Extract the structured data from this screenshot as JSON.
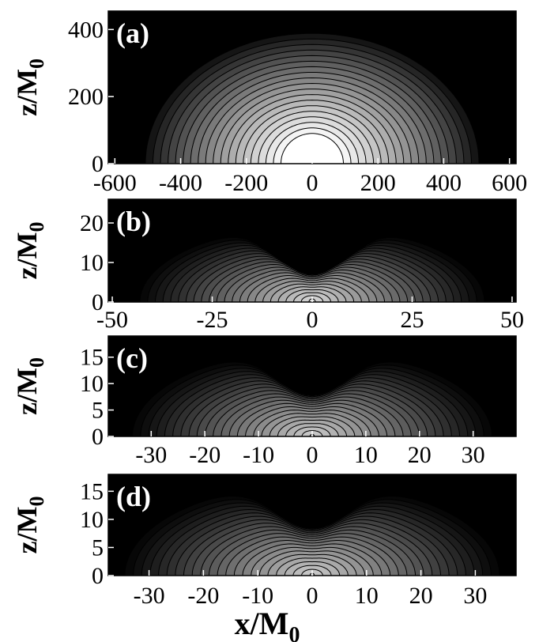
{
  "chart_data": [
    {
      "type": "contour",
      "panel_label": "(a)",
      "ylabel": "z/M",
      "ylabel_sub": "0",
      "xlim": [
        -620,
        620
      ],
      "ylim": [
        0,
        455
      ],
      "xticks": [
        -600,
        -400,
        -200,
        0,
        200,
        400,
        600
      ],
      "xtick_labels": [
        "-600",
        "-400",
        "-200",
        "0",
        "200",
        "400",
        "600"
      ],
      "yticks": [
        0,
        200,
        400
      ],
      "ytick_labels": [
        "0",
        "200",
        "400"
      ],
      "contour_shape": "semicircle",
      "outer_radius": 530,
      "outer_top": 405,
      "inner_radius": 95,
      "inner_top": 90,
      "levels": 20,
      "background": "#000000",
      "brightest": "#ffffff"
    },
    {
      "type": "contour",
      "panel_label": "(b)",
      "ylabel": "z/M",
      "ylabel_sub": "0",
      "xlim": [
        -51,
        51
      ],
      "ylim": [
        0,
        26
      ],
      "xticks": [
        -50,
        -25,
        0,
        25,
        50
      ],
      "xtick_labels": [
        "-50",
        "-25",
        "0",
        "25",
        "50"
      ],
      "yticks": [
        0,
        10,
        20
      ],
      "ytick_labels": [
        "0",
        "10",
        "20"
      ],
      "contour_shape": "lobed",
      "outer_radius": 45,
      "outer_top": 20,
      "dip": 0.78,
      "inner_radius": 0.8,
      "inner_top": 0.8,
      "levels": 24,
      "background": "#000000",
      "brightest": "#d8d8d8"
    },
    {
      "type": "contour",
      "panel_label": "(c)",
      "ylabel": "z/M",
      "ylabel_sub": "0",
      "xlim": [
        -38,
        38
      ],
      "ylim": [
        0,
        19
      ],
      "xticks": [
        -30,
        -20,
        -10,
        0,
        10,
        20,
        30
      ],
      "xtick_labels": [
        "-30",
        "-20",
        "-10",
        "0",
        "10",
        "20",
        "30"
      ],
      "yticks": [
        0,
        5,
        10,
        15
      ],
      "ytick_labels": [
        "0",
        "5",
        "10",
        "15"
      ],
      "contour_shape": "lobed",
      "outer_radius": 35,
      "outer_top": 17,
      "dip": 0.55,
      "inner_radius": 0.4,
      "inner_top": 0.4,
      "levels": 24,
      "background": "#000000",
      "brightest": "#cfcfcf"
    },
    {
      "type": "contour",
      "panel_label": "(d)",
      "ylabel": "z/M",
      "ylabel_sub": "0",
      "xlim": [
        -37.5,
        37.5
      ],
      "ylim": [
        0,
        18
      ],
      "xticks": [
        -30,
        -20,
        -10,
        0,
        10,
        20,
        30
      ],
      "xtick_labels": [
        "-30",
        "-20",
        "-10",
        "0",
        "10",
        "20",
        "30"
      ],
      "yticks": [
        0,
        5,
        10,
        15
      ],
      "ytick_labels": [
        "0",
        "5",
        "10",
        "15"
      ],
      "contour_shape": "lobed",
      "outer_radius": 36,
      "outer_top": 17,
      "dip": 0.5,
      "inner_radius": 0.4,
      "inner_top": 0.4,
      "levels": 24,
      "background": "#000000",
      "brightest": "#cfcfcf"
    }
  ],
  "shared_xlabel": "x/M",
  "shared_xlabel_sub": "0"
}
